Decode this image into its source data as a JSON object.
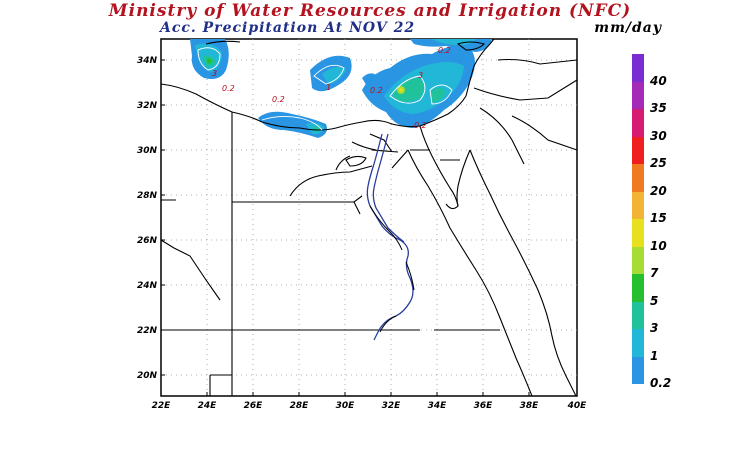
{
  "title": "Ministry of Water Resources and Irrigation (NFC)",
  "subtitle": "Acc. Precipitation   At NOV 22",
  "unit": "mm/day",
  "map": {
    "lon_ticks": [
      "22E",
      "24E",
      "26E",
      "28E",
      "30E",
      "32E",
      "34E",
      "36E",
      "38E",
      "40E"
    ],
    "lat_ticks": [
      "34N",
      "32N",
      "30N",
      "28N",
      "26N",
      "24N",
      "22N",
      "20N"
    ],
    "contour_labels": [
      "3",
      "0.2",
      "0.2",
      "1",
      "0.2",
      "0.2",
      "3",
      "0.2"
    ]
  },
  "legend": {
    "items": [
      {
        "label": "40",
        "color": "#7b2cd1"
      },
      {
        "label": "35",
        "color": "#a42bb8"
      },
      {
        "label": "30",
        "color": "#d51b72"
      },
      {
        "label": "25",
        "color": "#ef1f1f"
      },
      {
        "label": "20",
        "color": "#ee7a22"
      },
      {
        "label": "15",
        "color": "#f2b434"
      },
      {
        "label": "10",
        "color": "#e6e01e"
      },
      {
        "label": "7",
        "color": "#a6dc34"
      },
      {
        "label": "5",
        "color": "#25bf2f"
      },
      {
        "label": "3",
        "color": "#1fc29a"
      },
      {
        "label": "1",
        "color": "#23b7d7"
      },
      {
        "label": "0.2",
        "color": "#2a95e3"
      }
    ]
  }
}
